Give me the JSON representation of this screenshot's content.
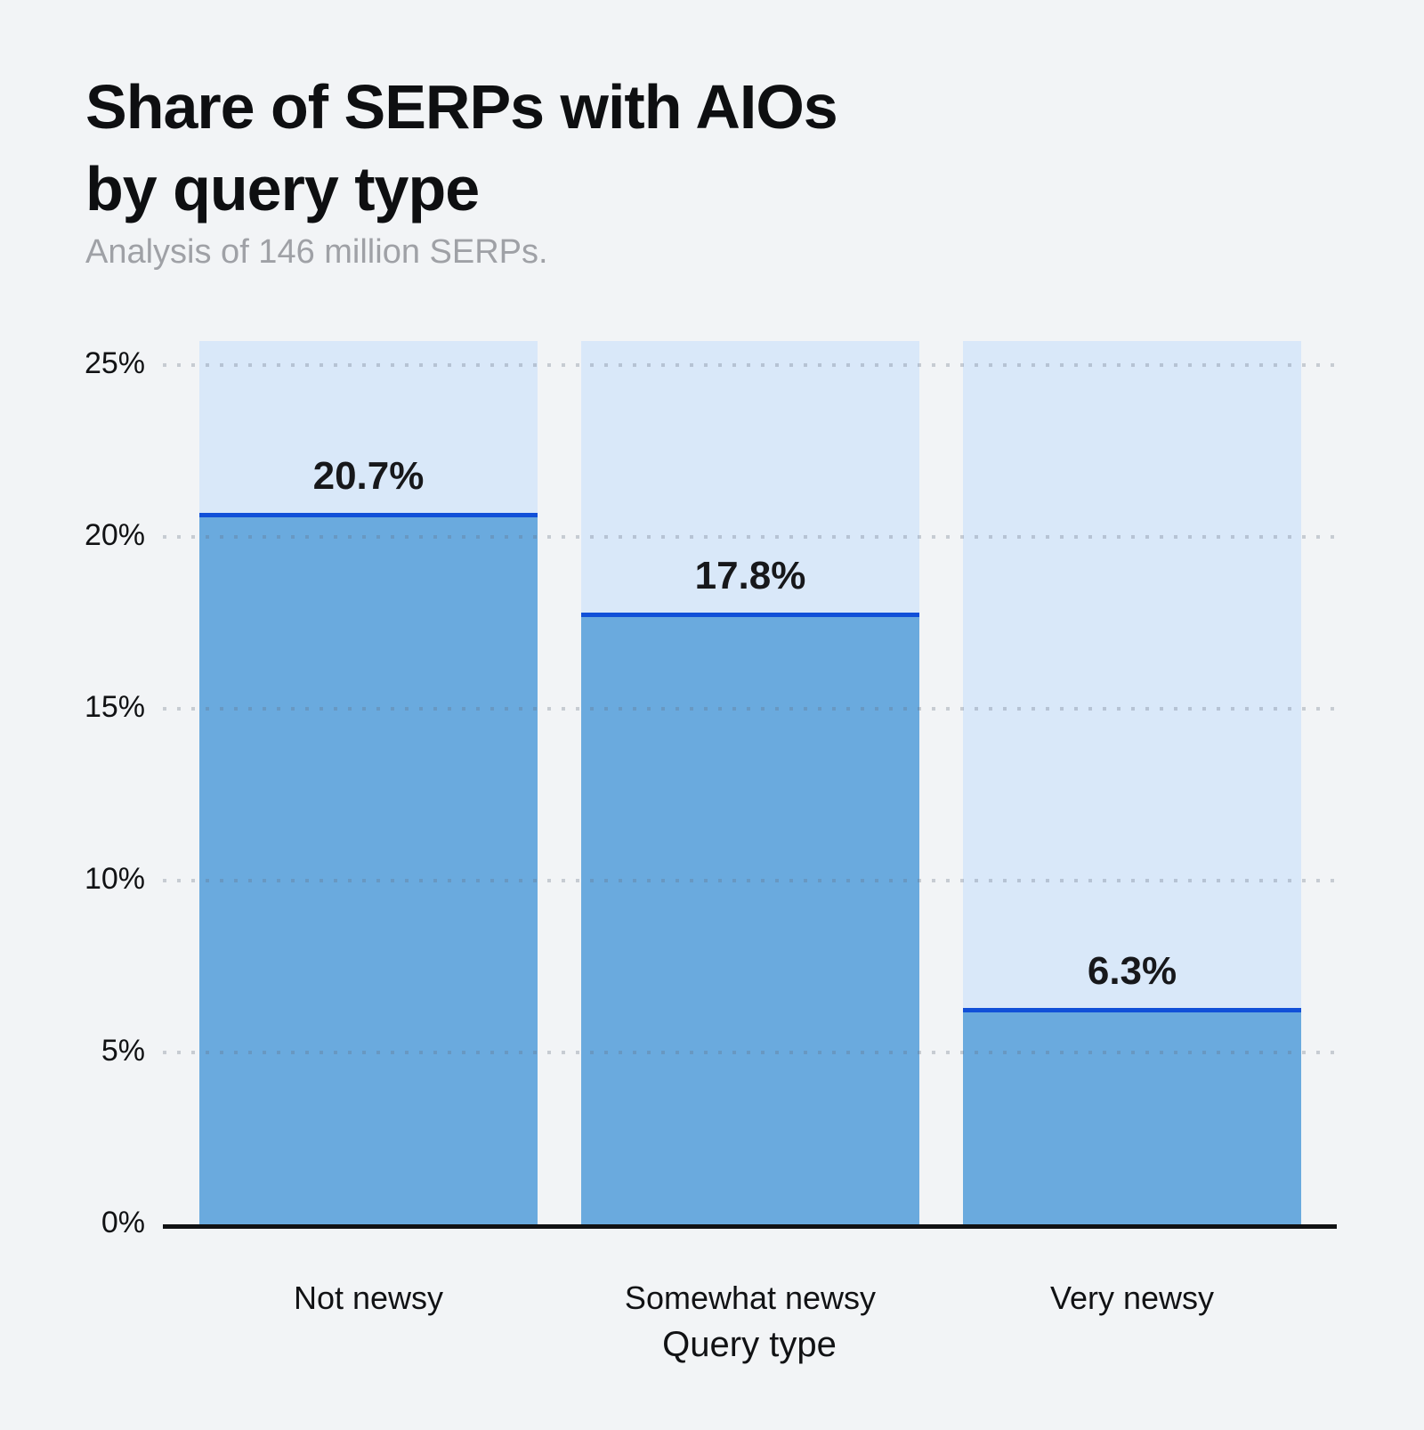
{
  "title": {
    "line1": "Share of SERPs with AIOs",
    "line2": "by query type"
  },
  "subtitle": "Analysis of 146 million SERPs.",
  "chart_data": {
    "type": "bar",
    "title": "Share of SERPs with AIOs by query type",
    "subtitle": "Analysis of 146 million SERPs.",
    "categories": [
      "Not newsy",
      "Somewhat newsy",
      "Very newsy"
    ],
    "values": [
      20.7,
      17.8,
      6.3
    ],
    "value_labels": [
      "20.7%",
      "17.8%",
      "6.3%"
    ],
    "xlabel": "Query type",
    "ylabel": "",
    "ylim": [
      0,
      25.7
    ],
    "yticks": [
      0,
      5,
      10,
      15,
      20,
      25
    ],
    "ytick_labels": [
      "0%",
      "5%",
      "10%",
      "15%",
      "20%",
      "25%"
    ],
    "grid": "horizontal-dotted",
    "legend": "none",
    "colors": {
      "background": "#f2f4f6",
      "bar_track": "#d9e8f9",
      "bar_fill": "#6aaade",
      "marker_line": "#1150d8",
      "axis_line": "#111214",
      "title_text": "#0e0f11",
      "subtitle_text": "#9fa1a6",
      "value_label_text": "#17181b",
      "grid_dot": "rgba(100,110,128,0.30)"
    }
  }
}
